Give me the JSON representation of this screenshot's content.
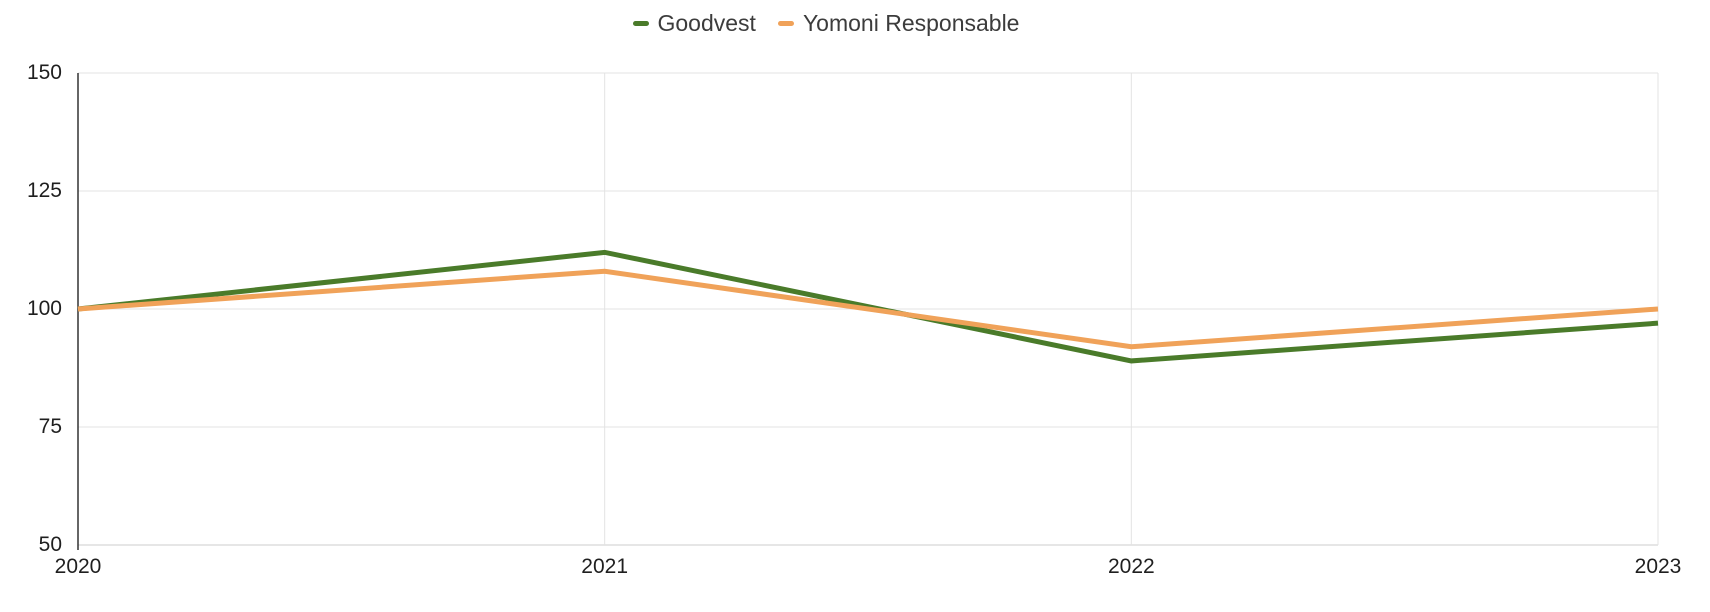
{
  "chart_data": {
    "type": "line",
    "categories": [
      "2020",
      "2021",
      "2022",
      "2023"
    ],
    "series": [
      {
        "name": "Goodvest",
        "color": "#4a7b2a",
        "values": [
          100,
          112,
          89,
          97
        ]
      },
      {
        "name": "Yomoni Responsable",
        "color": "#f0a259",
        "values": [
          100,
          108,
          92,
          100
        ]
      }
    ],
    "title": "",
    "xlabel": "",
    "ylabel": "",
    "ylim": [
      50,
      150
    ],
    "y_ticks": [
      50,
      75,
      100,
      125,
      150
    ],
    "grid": true,
    "legend_position": "top"
  },
  "colors": {
    "axis_line": "#333333",
    "gridline": "#e3e3e3",
    "baseline": "#cccccc",
    "tick_text": "#1f1f1f",
    "legend_text": "#3c3c3c"
  }
}
